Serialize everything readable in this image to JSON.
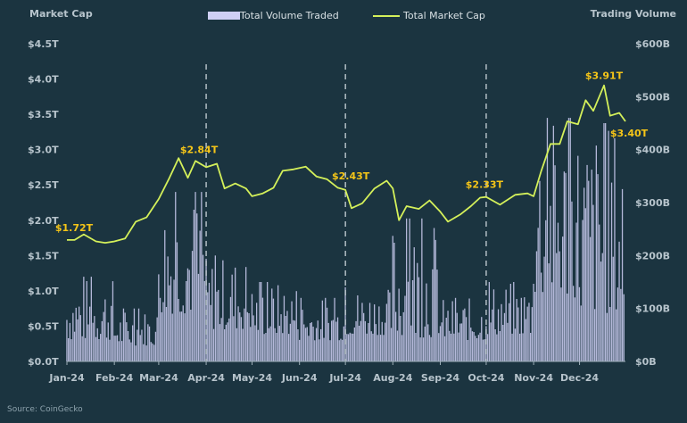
{
  "chart_data": {
    "type": "bar+line",
    "left_axis": {
      "title": "Market Cap",
      "ticks": [
        "$0.0T",
        "$0.5T",
        "$1.0T",
        "$1.5T",
        "$2.0T",
        "$2.5T",
        "$3.0T",
        "$3.5T",
        "$4.0T",
        "$4.5T"
      ],
      "range": [
        0,
        4.5
      ]
    },
    "right_axis": {
      "title": "Trading Volume",
      "ticks": [
        "$0B",
        "$100B",
        "$200B",
        "$300B",
        "$400B",
        "$500B",
        "$600B"
      ],
      "range": [
        0,
        600
      ]
    },
    "x_ticks": [
      "Jan-24",
      "Feb-24",
      "Mar-24",
      "Apr-24",
      "May-24",
      "Jun-24",
      "Jul-24",
      "Aug-24",
      "Sep-24",
      "Oct-24",
      "Nov-24",
      "Dec-24"
    ],
    "quarter_lines": [
      "Apr-24",
      "Jul-24",
      "Oct-24"
    ],
    "series": [
      {
        "name": "Total Volume Traded",
        "kind": "bar",
        "axis": "right",
        "color": "#cfd0f5",
        "monthly_volume_levels": [
          {
            "month": "Jan-24",
            "low": 40,
            "high": 160
          },
          {
            "month": "Feb-24",
            "low": 30,
            "high": 100
          },
          {
            "month": "Mar-24",
            "low": 90,
            "high": 320
          },
          {
            "month": "Apr-24",
            "low": 60,
            "high": 200
          },
          {
            "month": "May-24",
            "low": 50,
            "high": 150
          },
          {
            "month": "Jun-24",
            "low": 40,
            "high": 120
          },
          {
            "month": "Jul-24",
            "low": 50,
            "high": 140
          },
          {
            "month": "Aug-24",
            "low": 45,
            "high": 270
          },
          {
            "month": "Sep-24",
            "low": 40,
            "high": 120
          },
          {
            "month": "Oct-24",
            "low": 50,
            "high": 150
          },
          {
            "month": "Nov-24",
            "low": 120,
            "high": 460
          },
          {
            "month": "Dec-24",
            "low": 90,
            "high": 450
          }
        ]
      },
      {
        "name": "Total Market Cap",
        "kind": "line",
        "axis": "left",
        "color": "#d4f05a",
        "points": [
          {
            "date": "2024-01-01",
            "value": 1.72
          },
          {
            "date": "2024-01-06",
            "value": 1.72
          },
          {
            "date": "2024-01-12",
            "value": 1.8
          },
          {
            "date": "2024-01-20",
            "value": 1.7
          },
          {
            "date": "2024-01-26",
            "value": 1.68
          },
          {
            "date": "2024-02-01",
            "value": 1.7
          },
          {
            "date": "2024-02-08",
            "value": 1.74
          },
          {
            "date": "2024-02-15",
            "value": 1.98
          },
          {
            "date": "2024-02-22",
            "value": 2.04
          },
          {
            "date": "2024-03-01",
            "value": 2.3
          },
          {
            "date": "2024-03-08",
            "value": 2.6
          },
          {
            "date": "2024-03-14",
            "value": 2.88
          },
          {
            "date": "2024-03-20",
            "value": 2.6
          },
          {
            "date": "2024-03-25",
            "value": 2.84
          },
          {
            "date": "2024-04-01",
            "value": 2.75
          },
          {
            "date": "2024-04-08",
            "value": 2.8
          },
          {
            "date": "2024-04-13",
            "value": 2.45
          },
          {
            "date": "2024-04-20",
            "value": 2.52
          },
          {
            "date": "2024-04-27",
            "value": 2.45
          },
          {
            "date": "2024-05-01",
            "value": 2.34
          },
          {
            "date": "2024-05-08",
            "value": 2.38
          },
          {
            "date": "2024-05-15",
            "value": 2.46
          },
          {
            "date": "2024-05-21",
            "value": 2.7
          },
          {
            "date": "2024-05-28",
            "value": 2.72
          },
          {
            "date": "2024-06-05",
            "value": 2.76
          },
          {
            "date": "2024-06-12",
            "value": 2.62
          },
          {
            "date": "2024-06-19",
            "value": 2.58
          },
          {
            "date": "2024-06-26",
            "value": 2.46
          },
          {
            "date": "2024-07-01",
            "value": 2.43
          },
          {
            "date": "2024-07-05",
            "value": 2.17
          },
          {
            "date": "2024-07-12",
            "value": 2.24
          },
          {
            "date": "2024-07-20",
            "value": 2.45
          },
          {
            "date": "2024-07-28",
            "value": 2.56
          },
          {
            "date": "2024-08-01",
            "value": 2.45
          },
          {
            "date": "2024-08-05",
            "value": 2.0
          },
          {
            "date": "2024-08-10",
            "value": 2.2
          },
          {
            "date": "2024-08-18",
            "value": 2.16
          },
          {
            "date": "2024-08-25",
            "value": 2.28
          },
          {
            "date": "2024-09-01",
            "value": 2.12
          },
          {
            "date": "2024-09-06",
            "value": 1.98
          },
          {
            "date": "2024-09-14",
            "value": 2.08
          },
          {
            "date": "2024-09-21",
            "value": 2.2
          },
          {
            "date": "2024-09-27",
            "value": 2.32
          },
          {
            "date": "2024-10-01",
            "value": 2.33
          },
          {
            "date": "2024-10-10",
            "value": 2.22
          },
          {
            "date": "2024-10-20",
            "value": 2.36
          },
          {
            "date": "2024-10-28",
            "value": 2.38
          },
          {
            "date": "2024-11-01",
            "value": 2.34
          },
          {
            "date": "2024-11-06",
            "value": 2.7
          },
          {
            "date": "2024-11-12",
            "value": 3.08
          },
          {
            "date": "2024-11-18",
            "value": 3.08
          },
          {
            "date": "2024-11-23",
            "value": 3.4
          },
          {
            "date": "2024-11-30",
            "value": 3.36
          },
          {
            "date": "2024-12-05",
            "value": 3.7
          },
          {
            "date": "2024-12-10",
            "value": 3.55
          },
          {
            "date": "2024-12-17",
            "value": 3.91
          },
          {
            "date": "2024-12-21",
            "value": 3.48
          },
          {
            "date": "2024-12-27",
            "value": 3.52
          },
          {
            "date": "2024-12-31",
            "value": 3.4
          }
        ]
      }
    ],
    "annotations": [
      {
        "text": "$1.72T",
        "date": "2024-01-01",
        "value": 1.72
      },
      {
        "text": "$2.84T",
        "date": "2024-03-25",
        "value": 2.84
      },
      {
        "text": "$2.43T",
        "date": "2024-07-01",
        "value": 2.43
      },
      {
        "text": "$2.33T",
        "date": "2024-10-01",
        "value": 2.33
      },
      {
        "text": "$3.91T",
        "date": "2024-12-17",
        "value": 3.91
      },
      {
        "text": "$3.40T",
        "date": "2024-12-31",
        "value": 3.4
      }
    ],
    "grid": false,
    "legend_position": "top-center"
  },
  "source": "Source: CoinGecko",
  "colors": {
    "background": "#1b3440",
    "line": "#d4f05a",
    "bars": "#cfd0f5",
    "annotation_text": "#f5c518",
    "axis_text": "#b7c4cc"
  }
}
